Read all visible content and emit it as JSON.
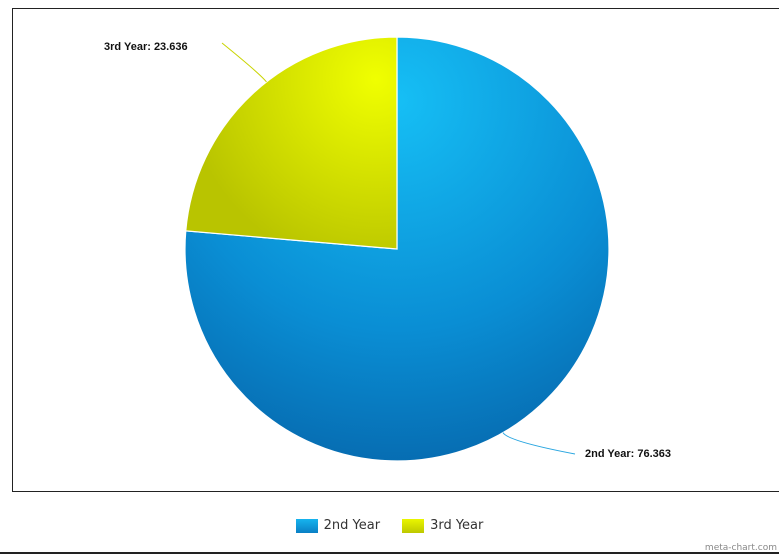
{
  "chart_data": {
    "type": "pie",
    "title": "",
    "start_angle_deg": 0,
    "direction": "clockwise",
    "slices": [
      {
        "name": "2nd Year",
        "value": 76.363,
        "label": "2nd Year: 76.363",
        "color": "#0a8fd4"
      },
      {
        "name": "3rd Year",
        "value": 23.636,
        "label": "3rd Year: 23.636",
        "color": "#d4e000"
      }
    ],
    "legend": {
      "position": "bottom",
      "items": [
        {
          "label": "2nd Year",
          "color": "#0a8fd4"
        },
        {
          "label": "3rd Year",
          "color": "#d4e000"
        }
      ]
    }
  },
  "credit": "meta-chart.com"
}
